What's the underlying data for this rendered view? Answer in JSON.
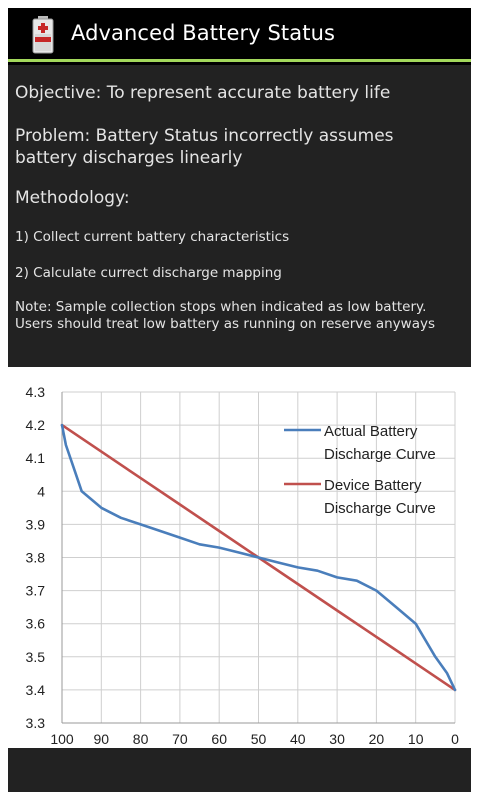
{
  "app": {
    "title": "Advanced Battery Status",
    "icon": "battery-app-icon"
  },
  "content": {
    "objective": "Objective: To represent accurate battery life",
    "problem_line1": "Problem: Battery Status incorrectly assumes",
    "problem_line2": "battery discharges linearly",
    "methodology": "Methodology:",
    "step1": "1) Collect current battery characteristics",
    "step2": "2) Calculate currect discharge mapping",
    "note_line1": "Note: Sample collection stops when indicated as low battery.",
    "note_line2": "Users should treat low battery as running on reserve anyways"
  },
  "chart_data": {
    "type": "line",
    "title": "",
    "xlabel": "",
    "ylabel": "",
    "xlim": [
      100,
      0
    ],
    "ylim": [
      3.3,
      4.3
    ],
    "x_ticks": [
      "100",
      "90",
      "80",
      "70",
      "60",
      "50",
      "40",
      "30",
      "20",
      "10",
      "0"
    ],
    "y_ticks": [
      "4.3",
      "4.2",
      "4.1",
      "4",
      "3.9",
      "3.8",
      "3.7",
      "3.6",
      "3.5",
      "3.4",
      "3.3"
    ],
    "x_reversed": true,
    "grid": true,
    "legend_position": "top-right",
    "series": [
      {
        "name_line1": "Actual Battery",
        "name_line2": "Discharge Curve",
        "color": "#4a7ebb",
        "x": [
          100,
          99,
          97,
          95,
          90,
          85,
          80,
          75,
          70,
          65,
          60,
          55,
          50,
          45,
          40,
          35,
          30,
          25,
          20,
          15,
          10,
          5,
          2,
          0
        ],
        "y": [
          4.2,
          4.14,
          4.07,
          4.0,
          3.95,
          3.92,
          3.9,
          3.88,
          3.86,
          3.84,
          3.83,
          3.815,
          3.8,
          3.785,
          3.77,
          3.76,
          3.74,
          3.73,
          3.7,
          3.65,
          3.6,
          3.5,
          3.45,
          3.4
        ]
      },
      {
        "name_line1": "Device Battery",
        "name_line2": "Discharge Curve",
        "color": "#c0504d",
        "x": [
          100,
          90,
          80,
          70,
          60,
          50,
          40,
          30,
          20,
          10,
          0
        ],
        "y": [
          4.2,
          4.12,
          4.04,
          3.96,
          3.88,
          3.8,
          3.72,
          3.64,
          3.56,
          3.48,
          3.4
        ]
      }
    ]
  }
}
